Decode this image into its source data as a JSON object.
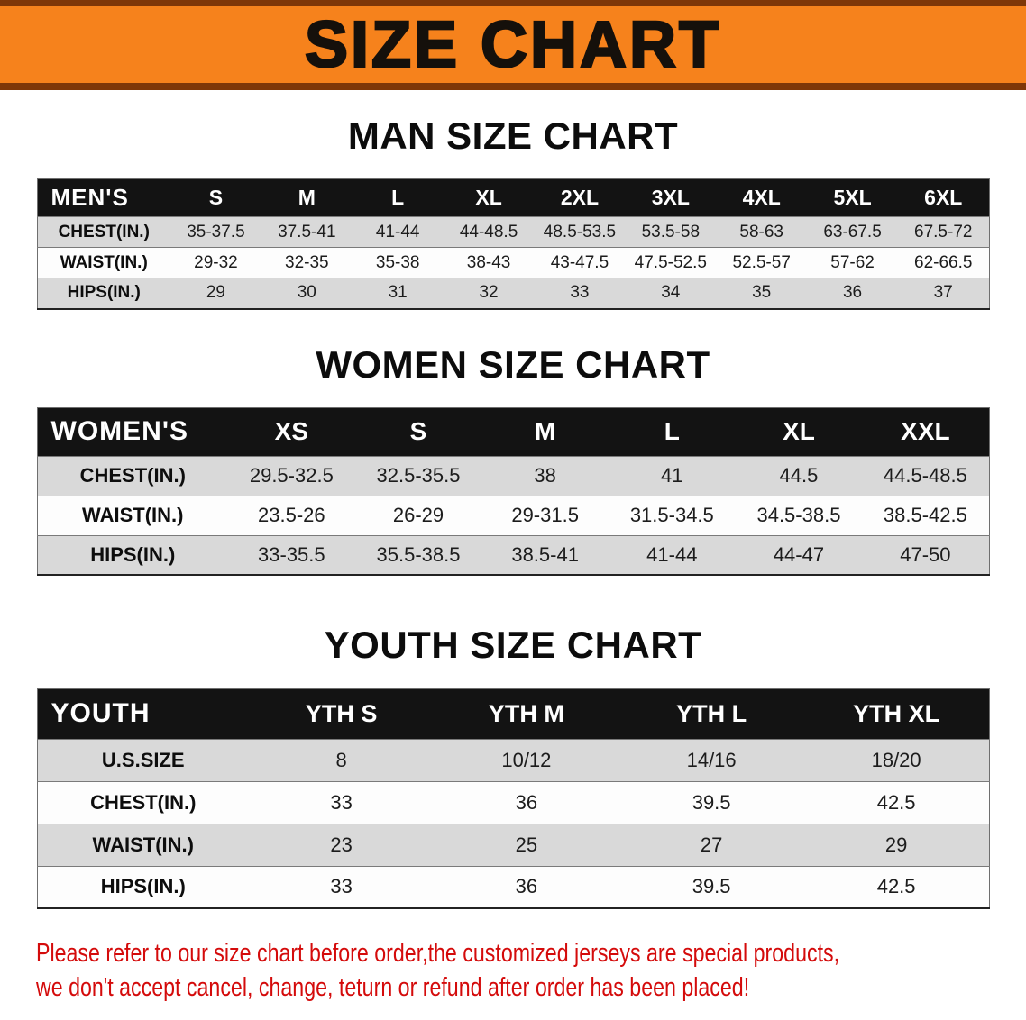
{
  "banner": {
    "title": "SIZE CHART"
  },
  "sections": [
    {
      "id": "men",
      "heading": "MAN SIZE CHART",
      "table": {
        "header": [
          "MEN'S",
          "S",
          "M",
          "L",
          "XL",
          "2XL",
          "3XL",
          "4XL",
          "5XL",
          "6XL"
        ],
        "rows": [
          {
            "label": "CHEST(IN.)",
            "values": [
              "35-37.5",
              "37.5-41",
              "41-44",
              "44-48.5",
              "48.5-53.5",
              "53.5-58",
              "58-63",
              "63-67.5",
              "67.5-72"
            ]
          },
          {
            "label": "WAIST(IN.)",
            "values": [
              "29-32",
              "32-35",
              "35-38",
              "38-43",
              "43-47.5",
              "47.5-52.5",
              "52.5-57",
              "57-62",
              "62-66.5"
            ]
          },
          {
            "label": "HIPS(IN.)",
            "values": [
              "29",
              "30",
              "31",
              "32",
              "33",
              "34",
              "35",
              "36",
              "37"
            ]
          }
        ]
      }
    },
    {
      "id": "women",
      "heading": "WOMEN SIZE CHART",
      "table": {
        "header": [
          "WOMEN'S",
          "XS",
          "S",
          "M",
          "L",
          "XL",
          "XXL"
        ],
        "rows": [
          {
            "label": "CHEST(IN.)",
            "values": [
              "29.5-32.5",
              "32.5-35.5",
              "38",
              "41",
              "44.5",
              "44.5-48.5"
            ]
          },
          {
            "label": "WAIST(IN.)",
            "values": [
              "23.5-26",
              "26-29",
              "29-31.5",
              "31.5-34.5",
              "34.5-38.5",
              "38.5-42.5"
            ]
          },
          {
            "label": "HIPS(IN.)",
            "values": [
              "33-35.5",
              "35.5-38.5",
              "38.5-41",
              "41-44",
              "44-47",
              "47-50"
            ]
          }
        ]
      }
    },
    {
      "id": "youth",
      "heading": "YOUTH SIZE CHART",
      "table": {
        "header": [
          "YOUTH",
          "YTH S",
          "YTH M",
          "YTH L",
          "YTH XL"
        ],
        "rows": [
          {
            "label": "U.S.SIZE",
            "values": [
              "8",
              "10/12",
              "14/16",
              "18/20"
            ]
          },
          {
            "label": "CHEST(IN.)",
            "values": [
              "33",
              "36",
              "39.5",
              "42.5"
            ]
          },
          {
            "label": "WAIST(IN.)",
            "values": [
              "23",
              "25",
              "27",
              "29"
            ]
          },
          {
            "label": "HIPS(IN.)",
            "values": [
              "33",
              "36",
              "39.5",
              "42.5"
            ]
          }
        ]
      }
    }
  ],
  "disclaimer": {
    "line1": "Please refer to our size chart before order,the customized jerseys are special products,",
    "line2": "we don't accept cancel, change, teturn or refund after order has been placed!"
  },
  "colors": {
    "banner-bg": "#f6821c",
    "banner-border": "#7e3708",
    "header-bg": "#131313",
    "header-text": "#ffffff",
    "row-gray": "#d9d9d9",
    "row-white": "#fdfdfd",
    "disclaimer-red": "#d40b0b",
    "title-text": "#15100b"
  }
}
